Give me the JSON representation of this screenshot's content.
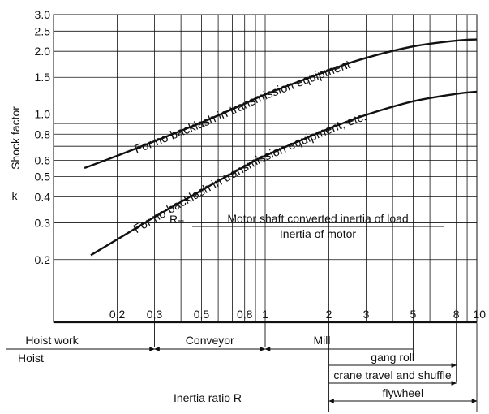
{
  "chart_data": {
    "type": "line",
    "ylabel_main": "Shock factor",
    "ylabel_sub": "k",
    "xlabel": "Inertia ratio R",
    "x_scale": "log",
    "y_scale": "log",
    "xlim": [
      0.1,
      10
    ],
    "ylim": [
      0.1,
      3.0
    ],
    "x_ticks": [
      0.2,
      0.3,
      0.5,
      0.8,
      1,
      2,
      3,
      5,
      8,
      10
    ],
    "x_tick_labels": [
      "0,2",
      "0,3",
      "0,5",
      "0,8",
      "1",
      "2",
      "3",
      "5",
      "8",
      "10"
    ],
    "y_ticks": [
      0.2,
      0.3,
      0.4,
      0.5,
      0.6,
      0.8,
      1.0,
      1.5,
      2.0,
      2.5,
      3.0
    ],
    "y_tick_labels": [
      "0.2",
      "0.3",
      "0.4",
      "0.5",
      "0.6",
      "0.8",
      "1.0",
      "1.5",
      "2.0",
      "2.5",
      "3.0"
    ],
    "x_grid": [
      0.2,
      0.3,
      0.4,
      0.5,
      0.6,
      0.7,
      0.8,
      0.9,
      1,
      2,
      3,
      4,
      5,
      6,
      7,
      8,
      9
    ],
    "y_grid": [
      0.2,
      0.3,
      0.4,
      0.5,
      0.6,
      0.7,
      0.8,
      0.9,
      1.0,
      1.5,
      2.0,
      2.5,
      3.0
    ],
    "grid": true,
    "series": [
      {
        "name": "For no backlash in transmission equipment",
        "x": [
          0.14,
          0.2,
          0.3,
          0.5,
          0.8,
          1,
          2,
          3,
          5,
          8,
          10
        ],
        "y": [
          0.55,
          0.63,
          0.74,
          0.91,
          1.12,
          1.24,
          1.62,
          1.86,
          2.11,
          2.25,
          2.28
        ]
      },
      {
        "name": "For no backlash in transmission equipment, etc.",
        "x": [
          0.15,
          0.2,
          0.3,
          0.5,
          0.8,
          1,
          2,
          3,
          5,
          8,
          10
        ],
        "y": [
          0.21,
          0.25,
          0.32,
          0.43,
          0.56,
          0.63,
          0.85,
          0.99,
          1.15,
          1.25,
          1.28
        ]
      }
    ],
    "formula": {
      "prefix": "R=",
      "numerator": "Motor shaft converted inertia of load",
      "denominator": "Inertia of motor"
    },
    "ranges": [
      {
        "label": "Hoist work",
        "from": 0.1,
        "to": 0.3,
        "row": 0,
        "arrows": false,
        "align": "center"
      },
      {
        "label": "Conveyor",
        "from": 0.3,
        "to": 1,
        "row": 0,
        "arrows": false,
        "align": "center"
      },
      {
        "label": "Mill",
        "from": 1,
        "to": 5,
        "row": 0,
        "arrows": false,
        "align": "center"
      },
      {
        "label": "Hoist",
        "from": 0.1,
        "to": 0.3,
        "row": 1,
        "arrows": "end",
        "align": "left"
      },
      {
        "label": "",
        "from": 0.3,
        "to": 1,
        "row": 1,
        "arrows": "both",
        "align": "center"
      },
      {
        "label": "",
        "from": 1,
        "to": 5,
        "row": 1,
        "arrows": "start",
        "align": "center"
      },
      {
        "label": "gang roll",
        "from": 2,
        "to": 8,
        "row": 2,
        "arrows": "end",
        "align": "center"
      },
      {
        "label": "crane travel and shuffle",
        "from": 2,
        "to": 8,
        "row": 3,
        "arrows": "end",
        "align": "right"
      },
      {
        "label": "flywheel",
        "from": 2,
        "to": 10,
        "row": 4,
        "arrows": "both",
        "align": "center"
      }
    ]
  }
}
